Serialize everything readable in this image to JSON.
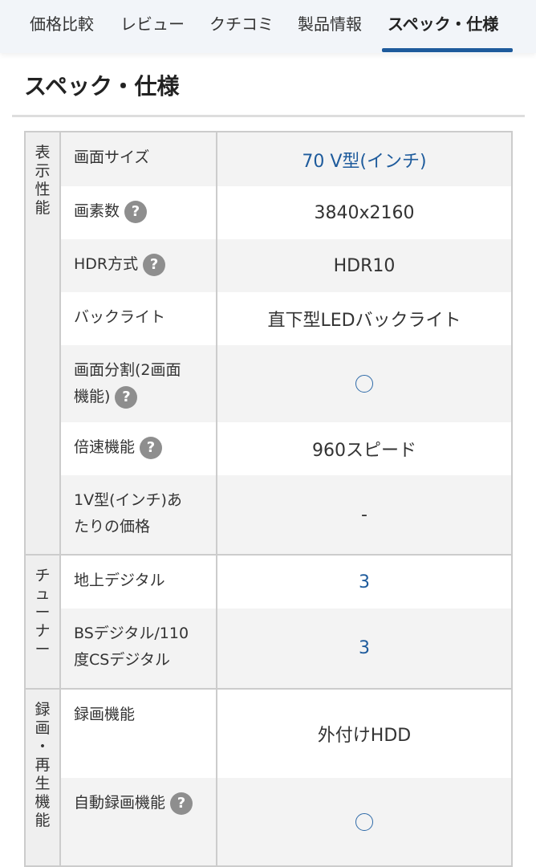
{
  "tabs": [
    {
      "label": "価格比較"
    },
    {
      "label": "レビュー"
    },
    {
      "label": "クチコミ"
    },
    {
      "label": "製品情報"
    },
    {
      "label": "スペック・仕様",
      "active": true
    }
  ],
  "title": "スペック・仕様",
  "colors": {
    "accent": "#1e5b9c",
    "link": "#1e5b9c"
  },
  "groups": [
    {
      "name": "表示性能",
      "rows": [
        {
          "label": "画面サイズ",
          "value": "70 V型(インチ)",
          "link": true
        },
        {
          "label": "画素数",
          "help": true,
          "value": "3840x2160"
        },
        {
          "label": "HDR方式",
          "help": true,
          "value": "HDR10"
        },
        {
          "label": "バックライト",
          "value": "直下型LEDバックライト"
        },
        {
          "label": "画面分割(2画面機能)",
          "help": true,
          "value": "○",
          "icon": "circle-icon"
        },
        {
          "label": "倍速機能",
          "help": true,
          "value": "960スピード"
        },
        {
          "label": "1V型(インチ)あたりの価格",
          "value": "-"
        }
      ]
    },
    {
      "name": "チューナー",
      "rows": [
        {
          "label": "地上デジタル",
          "value": "3",
          "link": true
        },
        {
          "label": "BSデジタル/110度CSデジタル",
          "value": "3",
          "link": true
        }
      ]
    },
    {
      "name": "録画・再生機能",
      "rows": [
        {
          "label": "録画機能",
          "value": "外付けHDD"
        },
        {
          "label": "自動録画機能",
          "help": true,
          "value": "○",
          "icon": "circle-icon"
        }
      ]
    }
  ]
}
